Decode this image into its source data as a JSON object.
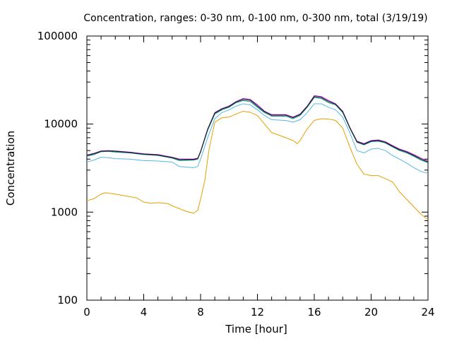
{
  "chart_data": {
    "type": "line",
    "title": "Concentration, ranges: 0-30 nm, 0-100 nm, 0-300 nm, total (3/19/19)",
    "xlabel": "Time [hour]",
    "ylabel": "Concentration",
    "xlim": [
      0,
      24
    ],
    "ylim": [
      100,
      100000
    ],
    "yscale": "log",
    "grid": false,
    "legend": "none",
    "x_ticks": [
      "0",
      "4",
      "8",
      "12",
      "16",
      "20",
      "24"
    ],
    "y_ticks": [
      "100",
      "1000",
      "10000",
      "100000"
    ],
    "series": [
      {
        "color": "#e69f00",
        "points": [
          [
            0,
            1350
          ],
          [
            0.5,
            1420
          ],
          [
            1,
            1600
          ],
          [
            1.3,
            1660
          ],
          [
            2,
            1600
          ],
          [
            3,
            1500
          ],
          [
            3.5,
            1450
          ],
          [
            4,
            1300
          ],
          [
            4.5,
            1260
          ],
          [
            5,
            1280
          ],
          [
            5.7,
            1250
          ],
          [
            6,
            1180
          ],
          [
            7,
            1020
          ],
          [
            7.5,
            970
          ],
          [
            7.8,
            1050
          ],
          [
            8,
            1400
          ],
          [
            8.3,
            2300
          ],
          [
            8.6,
            5200
          ],
          [
            9,
            10500
          ],
          [
            9.5,
            11800
          ],
          [
            10,
            12000
          ],
          [
            10.5,
            13000
          ],
          [
            11,
            14000
          ],
          [
            11.5,
            13600
          ],
          [
            12,
            12500
          ],
          [
            12.5,
            10000
          ],
          [
            13,
            8000
          ],
          [
            13.5,
            7500
          ],
          [
            14,
            7000
          ],
          [
            14.5,
            6500
          ],
          [
            14.8,
            6000
          ],
          [
            15,
            6500
          ],
          [
            15.5,
            8800
          ],
          [
            16,
            11000
          ],
          [
            16.5,
            11500
          ],
          [
            17,
            11400
          ],
          [
            17.5,
            11000
          ],
          [
            18,
            9000
          ],
          [
            18.5,
            5500
          ],
          [
            19,
            3500
          ],
          [
            19.5,
            2700
          ],
          [
            20,
            2600
          ],
          [
            20.5,
            2600
          ],
          [
            21,
            2400
          ],
          [
            21.5,
            2200
          ],
          [
            22,
            1700
          ],
          [
            22.5,
            1400
          ],
          [
            23,
            1150
          ],
          [
            23.5,
            950
          ],
          [
            24,
            820
          ]
        ]
      },
      {
        "color": "#56b4e9",
        "points": [
          [
            0,
            3700
          ],
          [
            0.5,
            3900
          ],
          [
            1,
            4200
          ],
          [
            1.5,
            4150
          ],
          [
            2,
            4050
          ],
          [
            3,
            4000
          ],
          [
            4,
            3850
          ],
          [
            5,
            3800
          ],
          [
            6,
            3700
          ],
          [
            6.5,
            3300
          ],
          [
            7.5,
            3200
          ],
          [
            7.8,
            3300
          ],
          [
            8,
            4000
          ],
          [
            8.5,
            7000
          ],
          [
            9,
            11500
          ],
          [
            9.5,
            13500
          ],
          [
            10,
            14500
          ],
          [
            10.5,
            16000
          ],
          [
            11,
            17000
          ],
          [
            11.5,
            16500
          ],
          [
            12,
            14500
          ],
          [
            12.5,
            12500
          ],
          [
            13,
            11200
          ],
          [
            14,
            11000
          ],
          [
            14.5,
            10500
          ],
          [
            15,
            11200
          ],
          [
            15.5,
            13500
          ],
          [
            16,
            17000
          ],
          [
            16.5,
            17000
          ],
          [
            17,
            15500
          ],
          [
            17.5,
            14500
          ],
          [
            18,
            12000
          ],
          [
            18.5,
            8000
          ],
          [
            19,
            5000
          ],
          [
            19.5,
            4700
          ],
          [
            20,
            5200
          ],
          [
            20.5,
            5300
          ],
          [
            21,
            5000
          ],
          [
            21.5,
            4400
          ],
          [
            22,
            4000
          ],
          [
            22.5,
            3600
          ],
          [
            23,
            3200
          ],
          [
            23.5,
            2900
          ],
          [
            24,
            2750
          ]
        ]
      },
      {
        "color": "#009e73",
        "points": [
          [
            0,
            4300
          ],
          [
            0.5,
            4500
          ],
          [
            1,
            4850
          ],
          [
            1.5,
            4900
          ],
          [
            2,
            4800
          ],
          [
            3,
            4700
          ],
          [
            4,
            4500
          ],
          [
            5,
            4400
          ],
          [
            6,
            4100
          ],
          [
            6.5,
            3850
          ],
          [
            7.5,
            3900
          ],
          [
            7.8,
            4000
          ],
          [
            8,
            4800
          ],
          [
            8.5,
            8500
          ],
          [
            9,
            13000
          ],
          [
            9.5,
            14500
          ],
          [
            10,
            15500
          ],
          [
            10.5,
            17500
          ],
          [
            11,
            18500
          ],
          [
            11.5,
            18000
          ],
          [
            12,
            15500
          ],
          [
            12.5,
            13500
          ],
          [
            13,
            12300
          ],
          [
            14,
            12300
          ],
          [
            14.5,
            11500
          ],
          [
            15,
            12500
          ],
          [
            15.5,
            15500
          ],
          [
            16,
            20000
          ],
          [
            16.5,
            19500
          ],
          [
            17,
            17500
          ],
          [
            17.5,
            16500
          ],
          [
            18,
            13500
          ],
          [
            18.5,
            9000
          ],
          [
            19,
            6200
          ],
          [
            19.5,
            5800
          ],
          [
            20,
            6300
          ],
          [
            20.5,
            6400
          ],
          [
            21,
            6100
          ],
          [
            21.5,
            5500
          ],
          [
            22,
            5000
          ],
          [
            22.5,
            4700
          ],
          [
            23,
            4300
          ],
          [
            23.5,
            3900
          ],
          [
            24,
            3650
          ]
        ]
      },
      {
        "color": "#9400d3",
        "points": [
          [
            0,
            4450
          ],
          [
            0.5,
            4650
          ],
          [
            1,
            4950
          ],
          [
            1.5,
            5000
          ],
          [
            2,
            4950
          ],
          [
            3,
            4800
          ],
          [
            4,
            4600
          ],
          [
            5,
            4500
          ],
          [
            6,
            4200
          ],
          [
            6.5,
            4000
          ],
          [
            7.5,
            4000
          ],
          [
            7.8,
            4100
          ],
          [
            8,
            4900
          ],
          [
            8.5,
            8800
          ],
          [
            9,
            13500
          ],
          [
            9.5,
            15000
          ],
          [
            10,
            16000
          ],
          [
            10.5,
            18000
          ],
          [
            11,
            19500
          ],
          [
            11.5,
            19000
          ],
          [
            12,
            16500
          ],
          [
            12.5,
            14000
          ],
          [
            13,
            12800
          ],
          [
            14,
            12800
          ],
          [
            14.5,
            12000
          ],
          [
            15,
            13000
          ],
          [
            15.5,
            16000
          ],
          [
            16,
            21000
          ],
          [
            16.5,
            20500
          ],
          [
            17,
            18500
          ],
          [
            17.5,
            17000
          ],
          [
            18,
            14000
          ],
          [
            18.5,
            9200
          ],
          [
            19,
            6400
          ],
          [
            19.5,
            6000
          ],
          [
            20,
            6500
          ],
          [
            20.5,
            6600
          ],
          [
            21,
            6300
          ],
          [
            21.5,
            5700
          ],
          [
            22,
            5200
          ],
          [
            22.5,
            4900
          ],
          [
            23,
            4500
          ],
          [
            23.5,
            4100
          ],
          [
            24,
            3800
          ]
        ]
      },
      {
        "color": "#1a1a1a",
        "points": [
          [
            0,
            4400
          ],
          [
            0.5,
            4600
          ],
          [
            1,
            4900
          ],
          [
            1.5,
            4950
          ],
          [
            2,
            4900
          ],
          [
            3,
            4750
          ],
          [
            4,
            4550
          ],
          [
            5,
            4450
          ],
          [
            6,
            4150
          ],
          [
            6.5,
            3950
          ],
          [
            7.5,
            3950
          ],
          [
            7.8,
            4050
          ],
          [
            8,
            4850
          ],
          [
            8.5,
            8700
          ],
          [
            9,
            13300
          ],
          [
            9.5,
            14800
          ],
          [
            10,
            15800
          ],
          [
            10.5,
            17800
          ],
          [
            11,
            19000
          ],
          [
            11.5,
            18600
          ],
          [
            12,
            16000
          ],
          [
            12.5,
            13800
          ],
          [
            13,
            12600
          ],
          [
            14,
            12600
          ],
          [
            14.5,
            11800
          ],
          [
            15,
            12800
          ],
          [
            15.5,
            15800
          ],
          [
            16,
            20500
          ],
          [
            16.5,
            20000
          ],
          [
            17,
            18000
          ],
          [
            17.5,
            16800
          ],
          [
            18,
            13800
          ],
          [
            18.5,
            9100
          ],
          [
            19,
            6300
          ],
          [
            19.5,
            5900
          ],
          [
            20,
            6400
          ],
          [
            20.5,
            6500
          ],
          [
            21,
            6200
          ],
          [
            21.5,
            5600
          ],
          [
            22,
            5100
          ],
          [
            22.5,
            4800
          ],
          [
            23,
            4400
          ],
          [
            23.5,
            4000
          ],
          [
            24,
            3700
          ]
        ]
      }
    ]
  }
}
